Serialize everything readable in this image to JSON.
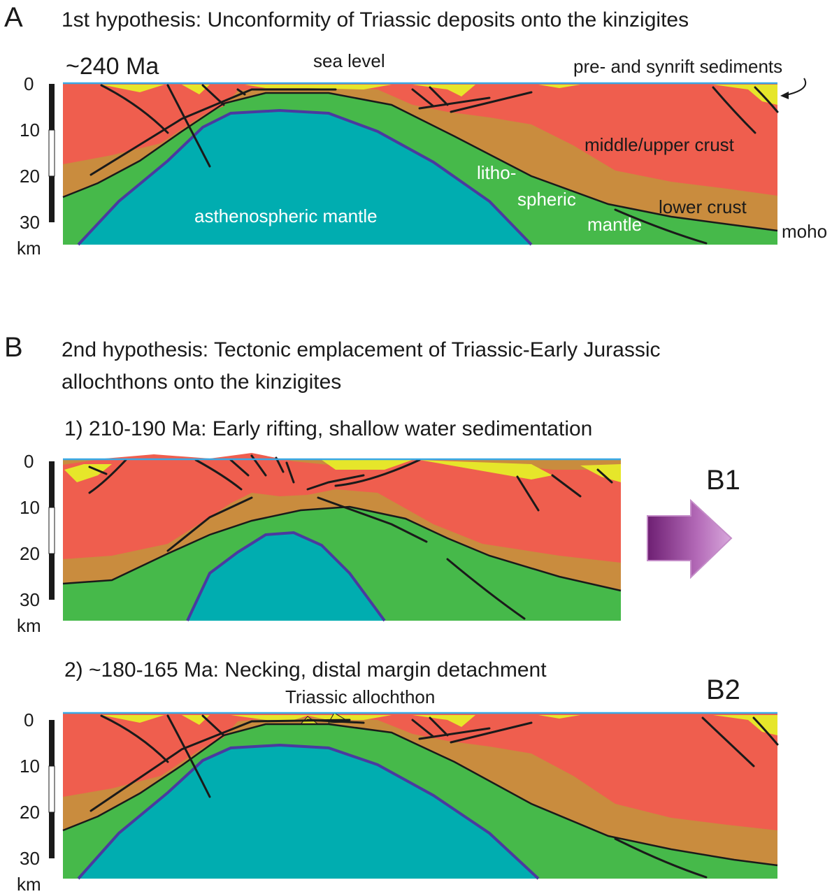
{
  "colors": {
    "sediment": "#e6e62a",
    "upper_crust": "#ef5e4e",
    "lower_crust": "#c98c3e",
    "lithospheric_mantle": "#46b94a",
    "asthenosphere": "#00adb0",
    "sea_level": "#39a9e6",
    "arrow": "#8a2e8c"
  },
  "panel_a": {
    "letter": "A",
    "title": "1st hypothesis: Unconformity of Triassic deposits onto the kinzigites",
    "age": "~240 Ma",
    "labels": {
      "sea_level": "sea level",
      "sediments": "pre- and synrift sediments",
      "upper_crust": "middle/upper crust",
      "lower_crust": "lower crust",
      "litho_1": "litho-",
      "litho_2": "spheric",
      "litho_3": "mantle",
      "asthenosphere": "asthenospheric mantle",
      "moho": "moho"
    }
  },
  "panel_b": {
    "letter": "B",
    "title_line1": "2nd hypothesis: Tectonic emplacement of Triassic-Early Jurassic",
    "title_line2": "allochthons onto the kinzigites",
    "b1": {
      "subtitle": "1) 210-190 Ma: Early rifting, shallow water sedimentation",
      "tag": "B1"
    },
    "b2": {
      "subtitle": "2) ~180-165 Ma: Necking, distal margin detachment",
      "tag": "B2",
      "allochthon": "Triassic allochthon"
    }
  },
  "depth_scale": {
    "ticks": [
      "0",
      "10",
      "20",
      "30"
    ],
    "unit": "km"
  }
}
